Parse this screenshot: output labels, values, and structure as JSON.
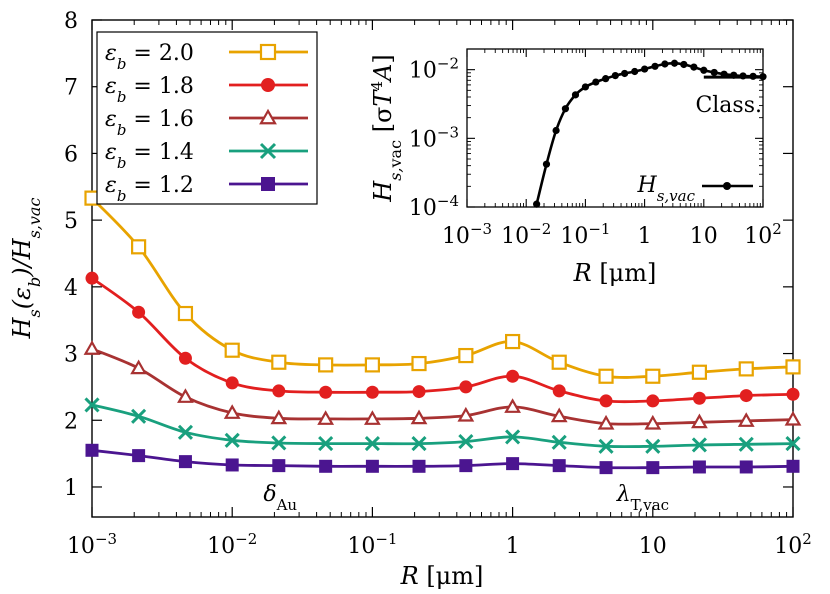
{
  "chart_data": [
    {
      "type": "line",
      "xscale": "log",
      "x_label_main": "R",
      "x_label_unit": "[μm]",
      "y_label": "Hs(εb)/Hs,vac",
      "xlim": [
        0.001,
        100
      ],
      "ylim": [
        0.55,
        8
      ],
      "x_ticks": [
        {
          "value": 0.001,
          "label": "10",
          "exp": "−3"
        },
        {
          "value": 0.01,
          "label": "10",
          "exp": "−2"
        },
        {
          "value": 0.1,
          "label": "10",
          "exp": "−1"
        },
        {
          "value": 1,
          "label": "1",
          "exp": ""
        },
        {
          "value": 10,
          "label": "10",
          "exp": ""
        },
        {
          "value": 100,
          "label": "10",
          "exp": "2"
        }
      ],
      "y_ticks": [
        1,
        2,
        3,
        4,
        5,
        6,
        7,
        8
      ],
      "x": [
        0.001,
        0.00215,
        0.00464,
        0.01,
        0.0215,
        0.0464,
        0.1,
        0.215,
        0.464,
        1,
        2.15,
        4.64,
        10,
        21.5,
        46.4,
        100
      ],
      "series": [
        {
          "name": "εb = 2.0",
          "label_main": "ε",
          "label_sub": "b",
          "label_val": " = 2.0",
          "color": "#e8a300",
          "marker": "open-square",
          "values": [
            5.33,
            4.6,
            3.6,
            3.05,
            2.87,
            2.83,
            2.83,
            2.85,
            2.97,
            3.18,
            2.87,
            2.66,
            2.66,
            2.72,
            2.77,
            2.8
          ]
        },
        {
          "name": "εb = 1.8",
          "label_main": "ε",
          "label_sub": "b",
          "label_val": " = 1.8",
          "color": "#e21f1f",
          "marker": "filled-circle",
          "values": [
            4.13,
            3.62,
            2.93,
            2.56,
            2.44,
            2.42,
            2.42,
            2.43,
            2.5,
            2.66,
            2.44,
            2.29,
            2.29,
            2.33,
            2.37,
            2.39
          ]
        },
        {
          "name": "εb = 1.6",
          "label_main": "ε",
          "label_sub": "b",
          "label_val": " = 1.6",
          "color": "#a83232",
          "marker": "open-triangle",
          "values": [
            3.07,
            2.78,
            2.35,
            2.11,
            2.03,
            2.02,
            2.02,
            2.03,
            2.07,
            2.2,
            2.06,
            1.95,
            1.95,
            1.97,
            1.99,
            2.01
          ]
        },
        {
          "name": "εb = 1.4",
          "label_main": "ε",
          "label_sub": "b",
          "label_val": " = 1.4",
          "color": "#19a07e",
          "marker": "cross",
          "values": [
            2.23,
            2.06,
            1.82,
            1.7,
            1.66,
            1.65,
            1.65,
            1.65,
            1.68,
            1.75,
            1.67,
            1.61,
            1.61,
            1.63,
            1.64,
            1.65
          ]
        },
        {
          "name": "εb = 1.2",
          "label_main": "ε",
          "label_sub": "b",
          "label_val": " = 1.2",
          "color": "#4b1590",
          "marker": "filled-square",
          "values": [
            1.55,
            1.47,
            1.38,
            1.33,
            1.32,
            1.31,
            1.31,
            1.31,
            1.32,
            1.35,
            1.32,
            1.29,
            1.29,
            1.3,
            1.3,
            1.31
          ]
        }
      ],
      "annotations": [
        {
          "value": 0.022,
          "main": "δ",
          "sub": "Au"
        },
        {
          "value": 8.5,
          "main": "λ",
          "sub": "T,vac"
        }
      ]
    },
    {
      "type": "line",
      "xscale": "log",
      "yscale": "log",
      "x_label_main": "R",
      "x_label_unit": "[μm]",
      "y_label": "Hs,vac [σT4A]",
      "xlim": [
        0.001,
        100
      ],
      "ylim": [
        0.0001,
        0.02
      ],
      "x_ticks": [
        {
          "value": 0.001,
          "label": "10",
          "exp": "−3"
        },
        {
          "value": 0.01,
          "label": "10",
          "exp": "−2"
        },
        {
          "value": 0.1,
          "label": "10",
          "exp": "−1"
        },
        {
          "value": 1,
          "label": "1",
          "exp": ""
        },
        {
          "value": 10,
          "label": "10",
          "exp": ""
        },
        {
          "value": 100,
          "label": "10",
          "exp": "2"
        }
      ],
      "y_ticks": [
        {
          "value": 0.01,
          "label": "10",
          "exp": "−2"
        },
        {
          "value": 0.001,
          "label": "10",
          "exp": "−3"
        },
        {
          "value": 0.0001,
          "label": "10",
          "exp": "−4"
        }
      ],
      "series": [
        {
          "name": "Hs,vac",
          "label_main": "H",
          "label_sub": "s,vac",
          "color": "#000000",
          "marker": "filled-circle",
          "x": [
            0.015,
            0.022,
            0.032,
            0.046,
            0.068,
            0.1,
            0.15,
            0.22,
            0.32,
            0.46,
            0.68,
            1.0,
            1.5,
            2.2,
            3.2,
            4.6,
            6.8,
            10,
            15,
            22,
            32,
            46,
            68,
            100
          ],
          "values": [
            0.00011,
            0.00042,
            0.0013,
            0.0027,
            0.0043,
            0.0056,
            0.0066,
            0.0074,
            0.0082,
            0.0088,
            0.0094,
            0.0102,
            0.0112,
            0.0121,
            0.0124,
            0.0119,
            0.0109,
            0.0098,
            0.0091,
            0.0086,
            0.0083,
            0.0081,
            0.008,
            0.0079
          ]
        },
        {
          "name": "Class.",
          "color": "#000000",
          "x": [
            10,
            100
          ],
          "values": [
            0.0078,
            0.0078
          ]
        }
      ],
      "annotations": [
        {
          "text": "Class."
        }
      ]
    }
  ]
}
